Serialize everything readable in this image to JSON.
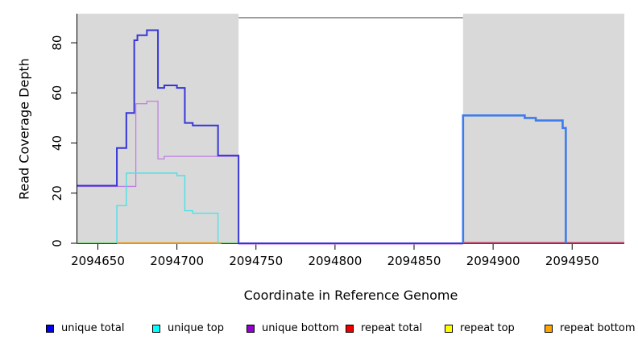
{
  "chart_data": {
    "type": "line",
    "title": "",
    "xlabel": "Coordinate in Reference Genome",
    "ylabel": "Read Coverage Depth",
    "xlim": [
      2094637,
      2094983
    ],
    "ylim": [
      0,
      91.6
    ],
    "x_ticks": [
      2094650,
      2094700,
      2094750,
      2094800,
      2094850,
      2094900,
      2094950
    ],
    "y_ticks": [
      0,
      20,
      40,
      60,
      80
    ],
    "grid": false,
    "legend_position": "bottom",
    "legend": [
      {
        "label": "unique total",
        "color": "#0000EE"
      },
      {
        "label": "unique top",
        "color": "#00FFFF"
      },
      {
        "label": "unique bottom",
        "color": "#9400D3"
      },
      {
        "label": "repeat total",
        "color": "#EE0000"
      },
      {
        "label": "repeat top",
        "color": "#FFFF00"
      },
      {
        "label": "repeat bottom",
        "color": "#FFA500"
      }
    ],
    "shaded_regions": [
      {
        "x0": 2094637,
        "x1": 2094739,
        "color": "#D9D9D9"
      },
      {
        "x0": 2094881,
        "x1": 2094983,
        "color": "#D9D9D9"
      }
    ],
    "top_boundary_line": {
      "x0": 2094739,
      "x1": 2094881,
      "y": 90,
      "color": "#8C8C8C",
      "width": 1.6
    },
    "lines": [
      {
        "id": "repeat-top-baseline",
        "series": "repeat top",
        "color": "#85D885",
        "width": 1.4,
        "dy": -0.5,
        "points": [
          [
            2094637,
            0
          ],
          [
            2094739,
            0
          ]
        ]
      },
      {
        "id": "unique-bottom-line",
        "series": "unique bottom",
        "color": "#BF7FE2",
        "width": 1.3,
        "dy": 1.0,
        "points": [
          [
            2094637,
            23
          ],
          [
            2094674,
            23
          ],
          [
            2094674,
            56
          ],
          [
            2094681,
            56
          ],
          [
            2094681,
            57
          ],
          [
            2094688,
            57
          ],
          [
            2094688,
            34
          ],
          [
            2094692,
            34
          ],
          [
            2094692,
            35
          ],
          [
            2094739,
            35
          ],
          [
            2094739,
            0
          ],
          [
            2094881,
            0
          ]
        ]
      },
      {
        "id": "unique-total-line",
        "series": "unique total",
        "color": "#3636D8",
        "width": 2.0,
        "dy": 0,
        "points": [
          [
            2094637,
            23
          ],
          [
            2094662,
            23
          ],
          [
            2094662,
            38
          ],
          [
            2094668,
            38
          ],
          [
            2094668,
            52
          ],
          [
            2094673,
            52
          ],
          [
            2094673,
            81
          ],
          [
            2094675,
            81
          ],
          [
            2094675,
            83
          ],
          [
            2094681,
            83
          ],
          [
            2094681,
            85
          ],
          [
            2094688,
            85
          ],
          [
            2094688,
            62
          ],
          [
            2094692,
            62
          ],
          [
            2094692,
            63
          ],
          [
            2094700,
            63
          ],
          [
            2094700,
            62
          ],
          [
            2094705,
            62
          ],
          [
            2094705,
            48
          ],
          [
            2094710,
            48
          ],
          [
            2094710,
            47
          ],
          [
            2094726,
            47
          ],
          [
            2094726,
            35
          ],
          [
            2094739,
            35
          ],
          [
            2094739,
            0
          ],
          [
            2094983,
            0
          ]
        ]
      },
      {
        "id": "repeat-bottom-line",
        "series": "repeat bottom",
        "color": "#FF8C00",
        "width": 1.9,
        "dy": 0,
        "points": [
          [
            2094662,
            0
          ],
          [
            2094728,
            0
          ]
        ]
      },
      {
        "id": "unique-top-line",
        "series": "unique top",
        "color": "#4FE0E6",
        "width": 1.4,
        "dy": 0,
        "points": [
          [
            2094662,
            0
          ],
          [
            2094662,
            15
          ],
          [
            2094668,
            15
          ],
          [
            2094668,
            28
          ],
          [
            2094700,
            28
          ],
          [
            2094700,
            27
          ],
          [
            2094705,
            27
          ],
          [
            2094705,
            13
          ],
          [
            2094710,
            13
          ],
          [
            2094710,
            12
          ],
          [
            2094726,
            12
          ],
          [
            2094726,
            0
          ]
        ]
      },
      {
        "id": "repeat-total-line",
        "series": "repeat total",
        "color": "#DC4050",
        "width": 1.3,
        "dy": -0.9,
        "points": [
          [
            2094881,
            0
          ],
          [
            2094983,
            0
          ]
        ]
      },
      {
        "id": "unique-total-right-line",
        "series": "unique total",
        "color": "#3D7CEC",
        "width": 2.6,
        "dy": 0,
        "points": [
          [
            2094881,
            0
          ],
          [
            2094881,
            51
          ],
          [
            2094920,
            51
          ],
          [
            2094920,
            50
          ],
          [
            2094927,
            50
          ],
          [
            2094927,
            49
          ],
          [
            2094944,
            49
          ],
          [
            2094944,
            46
          ],
          [
            2094946,
            46
          ],
          [
            2094946,
            0
          ]
        ]
      }
    ]
  }
}
